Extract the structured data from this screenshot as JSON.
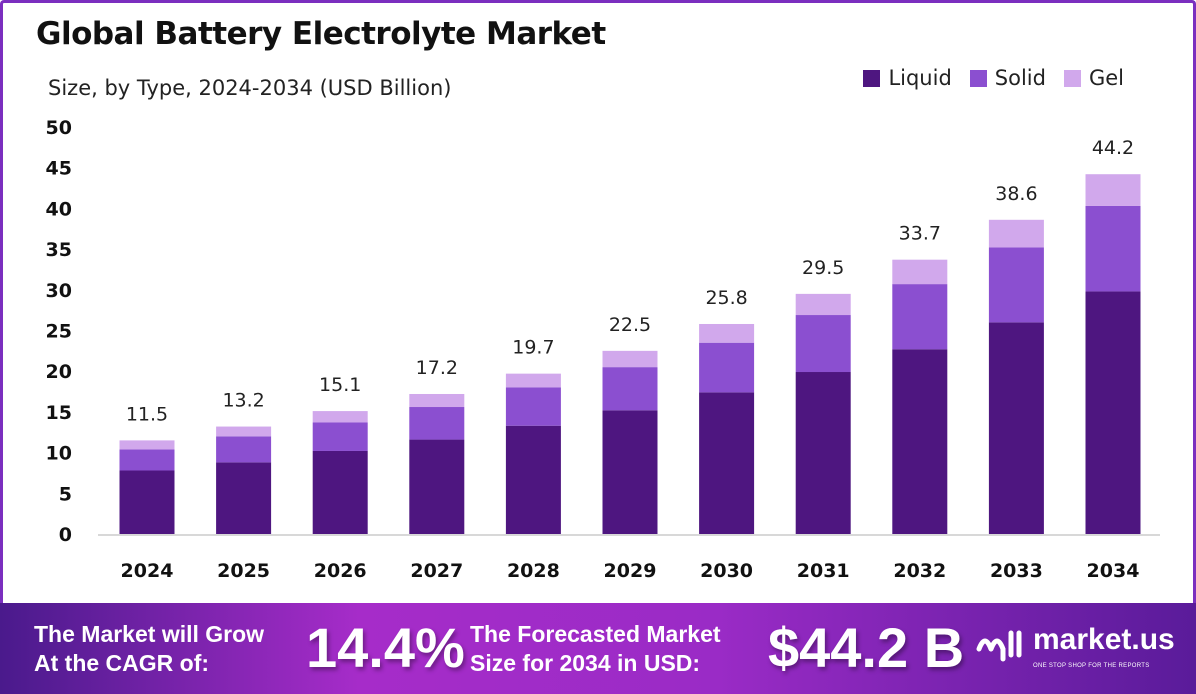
{
  "chart_data": {
    "type": "bar",
    "stacked": true,
    "title": "Global Battery Electrolyte Market",
    "subtitle": "Size, by Type, 2024-2034 (USD Billion)",
    "categories": [
      "2024",
      "2025",
      "2026",
      "2027",
      "2028",
      "2029",
      "2030",
      "2031",
      "2032",
      "2033",
      "2034"
    ],
    "series": [
      {
        "name": "Liquid",
        "color": "#4e1680",
        "values": [
          7.8,
          8.8,
          10.2,
          11.6,
          13.3,
          15.2,
          17.4,
          19.9,
          22.7,
          26.0,
          29.8
        ]
      },
      {
        "name": "Solid",
        "color": "#8b4fd0",
        "values": [
          2.6,
          3.2,
          3.5,
          4.0,
          4.7,
          5.3,
          6.1,
          7.0,
          8.0,
          9.2,
          10.5
        ]
      },
      {
        "name": "Gel",
        "color": "#d1a8ec",
        "values": [
          1.1,
          1.2,
          1.4,
          1.6,
          1.7,
          2.0,
          2.3,
          2.6,
          3.0,
          3.4,
          3.9
        ]
      }
    ],
    "totals": [
      "11.5",
      "13.2",
      "15.1",
      "17.2",
      "19.7",
      "22.5",
      "25.8",
      "29.5",
      "33.7",
      "38.6",
      "44.2"
    ],
    "yticks": [
      "0",
      "5",
      "10",
      "15",
      "20",
      "25",
      "30",
      "35",
      "40",
      "45",
      "50"
    ],
    "ylim": [
      0,
      50
    ],
    "grid": false,
    "legend": "top-right"
  },
  "banner": {
    "cagr_label_1": "The Market will Grow",
    "cagr_label_2": "At the CAGR of:",
    "cagr_value": "14.4%",
    "forecast_label_1": "The Forecasted Market",
    "forecast_label_2": "Size for 2034 in USD:",
    "forecast_value": "$44.2 B",
    "logo_text": "market.us",
    "logo_tagline": "ONE STOP SHOP FOR THE REPORTS"
  }
}
